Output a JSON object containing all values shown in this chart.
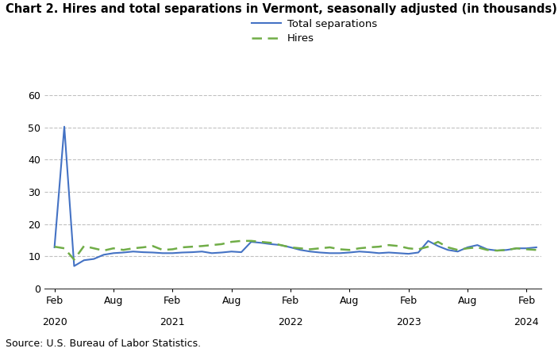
{
  "title": "Chart 2. Hires and total separations in Vermont, seasonally adjusted (in thousands)",
  "source": "Source: U.S. Bureau of Labor Statistics.",
  "total_separations": [
    12.8,
    50.2,
    7.0,
    8.8,
    9.2,
    10.5,
    11.0,
    11.2,
    11.5,
    11.3,
    11.2,
    11.0,
    11.0,
    11.2,
    11.3,
    11.5,
    11.0,
    11.2,
    11.5,
    11.3,
    14.5,
    14.2,
    13.8,
    13.5,
    12.8,
    12.0,
    11.5,
    11.2,
    11.0,
    11.0,
    11.2,
    11.5,
    11.3,
    11.0,
    11.2,
    11.0,
    10.8,
    11.2,
    14.8,
    13.2,
    12.0,
    11.5,
    12.8,
    13.5,
    12.2,
    11.8,
    12.0,
    12.5,
    12.5,
    12.8
  ],
  "hires": [
    13.0,
    12.5,
    9.0,
    13.2,
    12.5,
    11.8,
    12.5,
    12.0,
    12.5,
    12.8,
    13.2,
    12.0,
    12.2,
    12.8,
    13.0,
    13.2,
    13.5,
    13.8,
    14.5,
    14.8,
    14.8,
    14.5,
    14.2,
    13.5,
    12.8,
    12.5,
    12.2,
    12.5,
    12.8,
    12.2,
    12.0,
    12.5,
    12.8,
    13.0,
    13.5,
    13.2,
    12.5,
    12.2,
    13.0,
    14.5,
    12.8,
    12.0,
    12.5,
    12.8,
    12.0,
    11.8,
    12.0,
    12.5,
    12.2,
    12.0
  ],
  "x_tick_labels": [
    "Feb",
    "Aug",
    "Feb",
    "Aug",
    "Feb",
    "Aug",
    "Feb",
    "Aug",
    "Feb"
  ],
  "x_tick_positions": [
    1,
    7,
    13,
    19,
    25,
    31,
    37,
    43,
    49
  ],
  "x_year_labels": [
    "2020",
    "2021",
    "2022",
    "2023",
    "2024"
  ],
  "x_year_positions": [
    1,
    13,
    25,
    37,
    49
  ],
  "ylim": [
    0,
    60
  ],
  "yticks": [
    0,
    10,
    20,
    30,
    40,
    50,
    60
  ],
  "sep_color": "#4472C4",
  "hires_color": "#70AD47",
  "bg_color": "#FFFFFF",
  "grid_color": "#C0C0C0",
  "title_fontsize": 10.5,
  "axis_fontsize": 9,
  "legend_fontsize": 9.5,
  "source_fontsize": 9
}
